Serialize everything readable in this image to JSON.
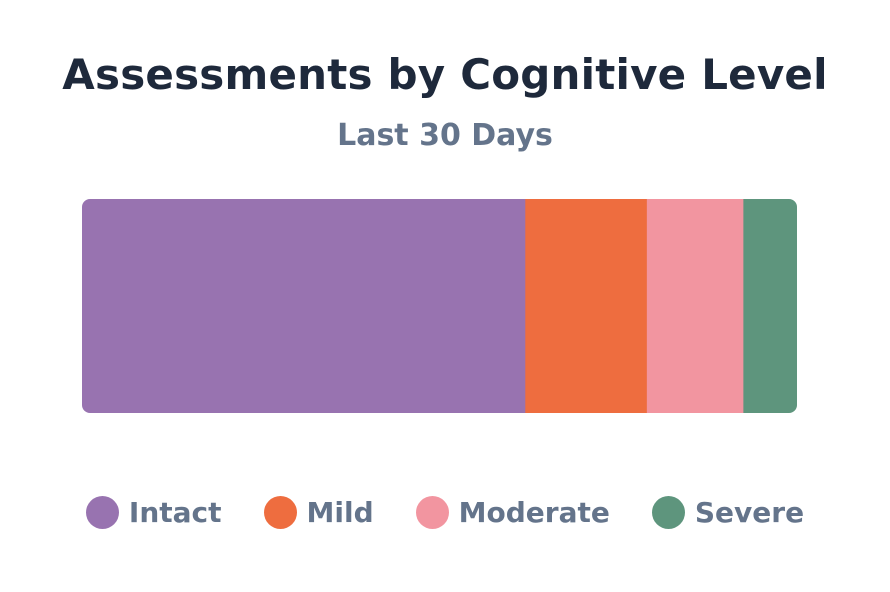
{
  "chart_data": {
    "type": "bar",
    "orientation": "horizontal-stacked-100",
    "title": "Assessments by Cognitive Level",
    "subtitle": "Last 30 Days",
    "categories": [
      "Intact",
      "Mild",
      "Moderate",
      "Severe"
    ],
    "values": [
      62,
      17,
      13.5,
      7.5
    ],
    "colors": [
      "#9873b0",
      "#ee6d3f",
      "#f295a0",
      "#5e957d"
    ],
    "legend_position": "bottom",
    "grid": false
  }
}
